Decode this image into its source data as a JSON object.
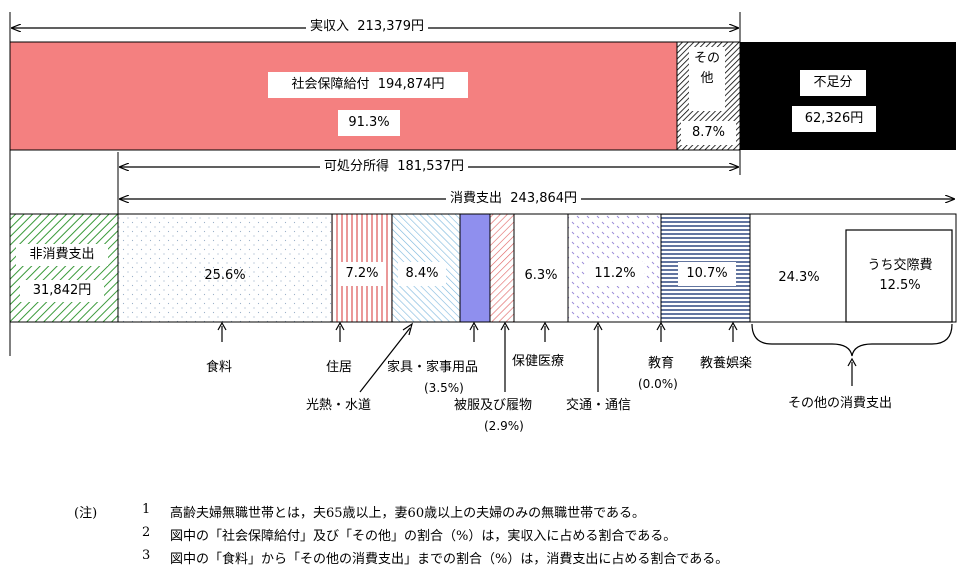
{
  "income": {
    "title": "実収入",
    "amount": "213,379円",
    "social_security_label": "社会保障給付",
    "social_security_amount": "194,874円",
    "social_security_pct": "91.3%",
    "other_label_line1": "その",
    "other_label_line2": "他",
    "other_pct": "8.7%",
    "deficit_label": "不足分",
    "deficit_amount": "62,326円"
  },
  "disposable": {
    "label": "可処分所得",
    "amount": "181,537円"
  },
  "consumption": {
    "label": "消費支出",
    "amount": "243,864円"
  },
  "non_consumption": {
    "label": "非消費支出",
    "amount": "31,842円"
  },
  "segments": {
    "food_pct": "25.6%",
    "housing_pct": "7.2%",
    "utilities_pct": "8.4%",
    "medical_pct": "6.3%",
    "transport_pct": "11.2%",
    "culture_pct": "10.7%",
    "other_pct": "24.3%",
    "social_label": "うち交際費",
    "social_pct": "12.5%"
  },
  "labels": {
    "food": "食料",
    "housing": "住居",
    "utilities": "光熱・水道",
    "furniture": "家具・家事用品",
    "furniture_pct": "(3.5%)",
    "clothing": "被服及び履物",
    "clothing_pct": "(2.9%)",
    "medical": "保健医療",
    "transport": "交通・通信",
    "education": "教育",
    "education_pct": "(0.0%)",
    "culture": "教養娯楽",
    "other": "その他の消費支出"
  },
  "notes": {
    "prefix": "(注)",
    "items": [
      {
        "num": "1",
        "text": "高齢夫婦無職世帯とは，夫65歳以上，妻60歳以上の夫婦のみの無職世帯である。"
      },
      {
        "num": "2",
        "text": "図中の「社会保障給付」及び「その他」の割合（%）は，実収入に占める割合である。"
      },
      {
        "num": "3",
        "text": "図中の「食料」から「その他の消費支出」までの割合（%）は，消費支出に占める割合である。"
      }
    ]
  },
  "colors": {
    "social_security": "#f48080",
    "clothing_blue": "#8f8fee",
    "deficit": "#000000"
  }
}
